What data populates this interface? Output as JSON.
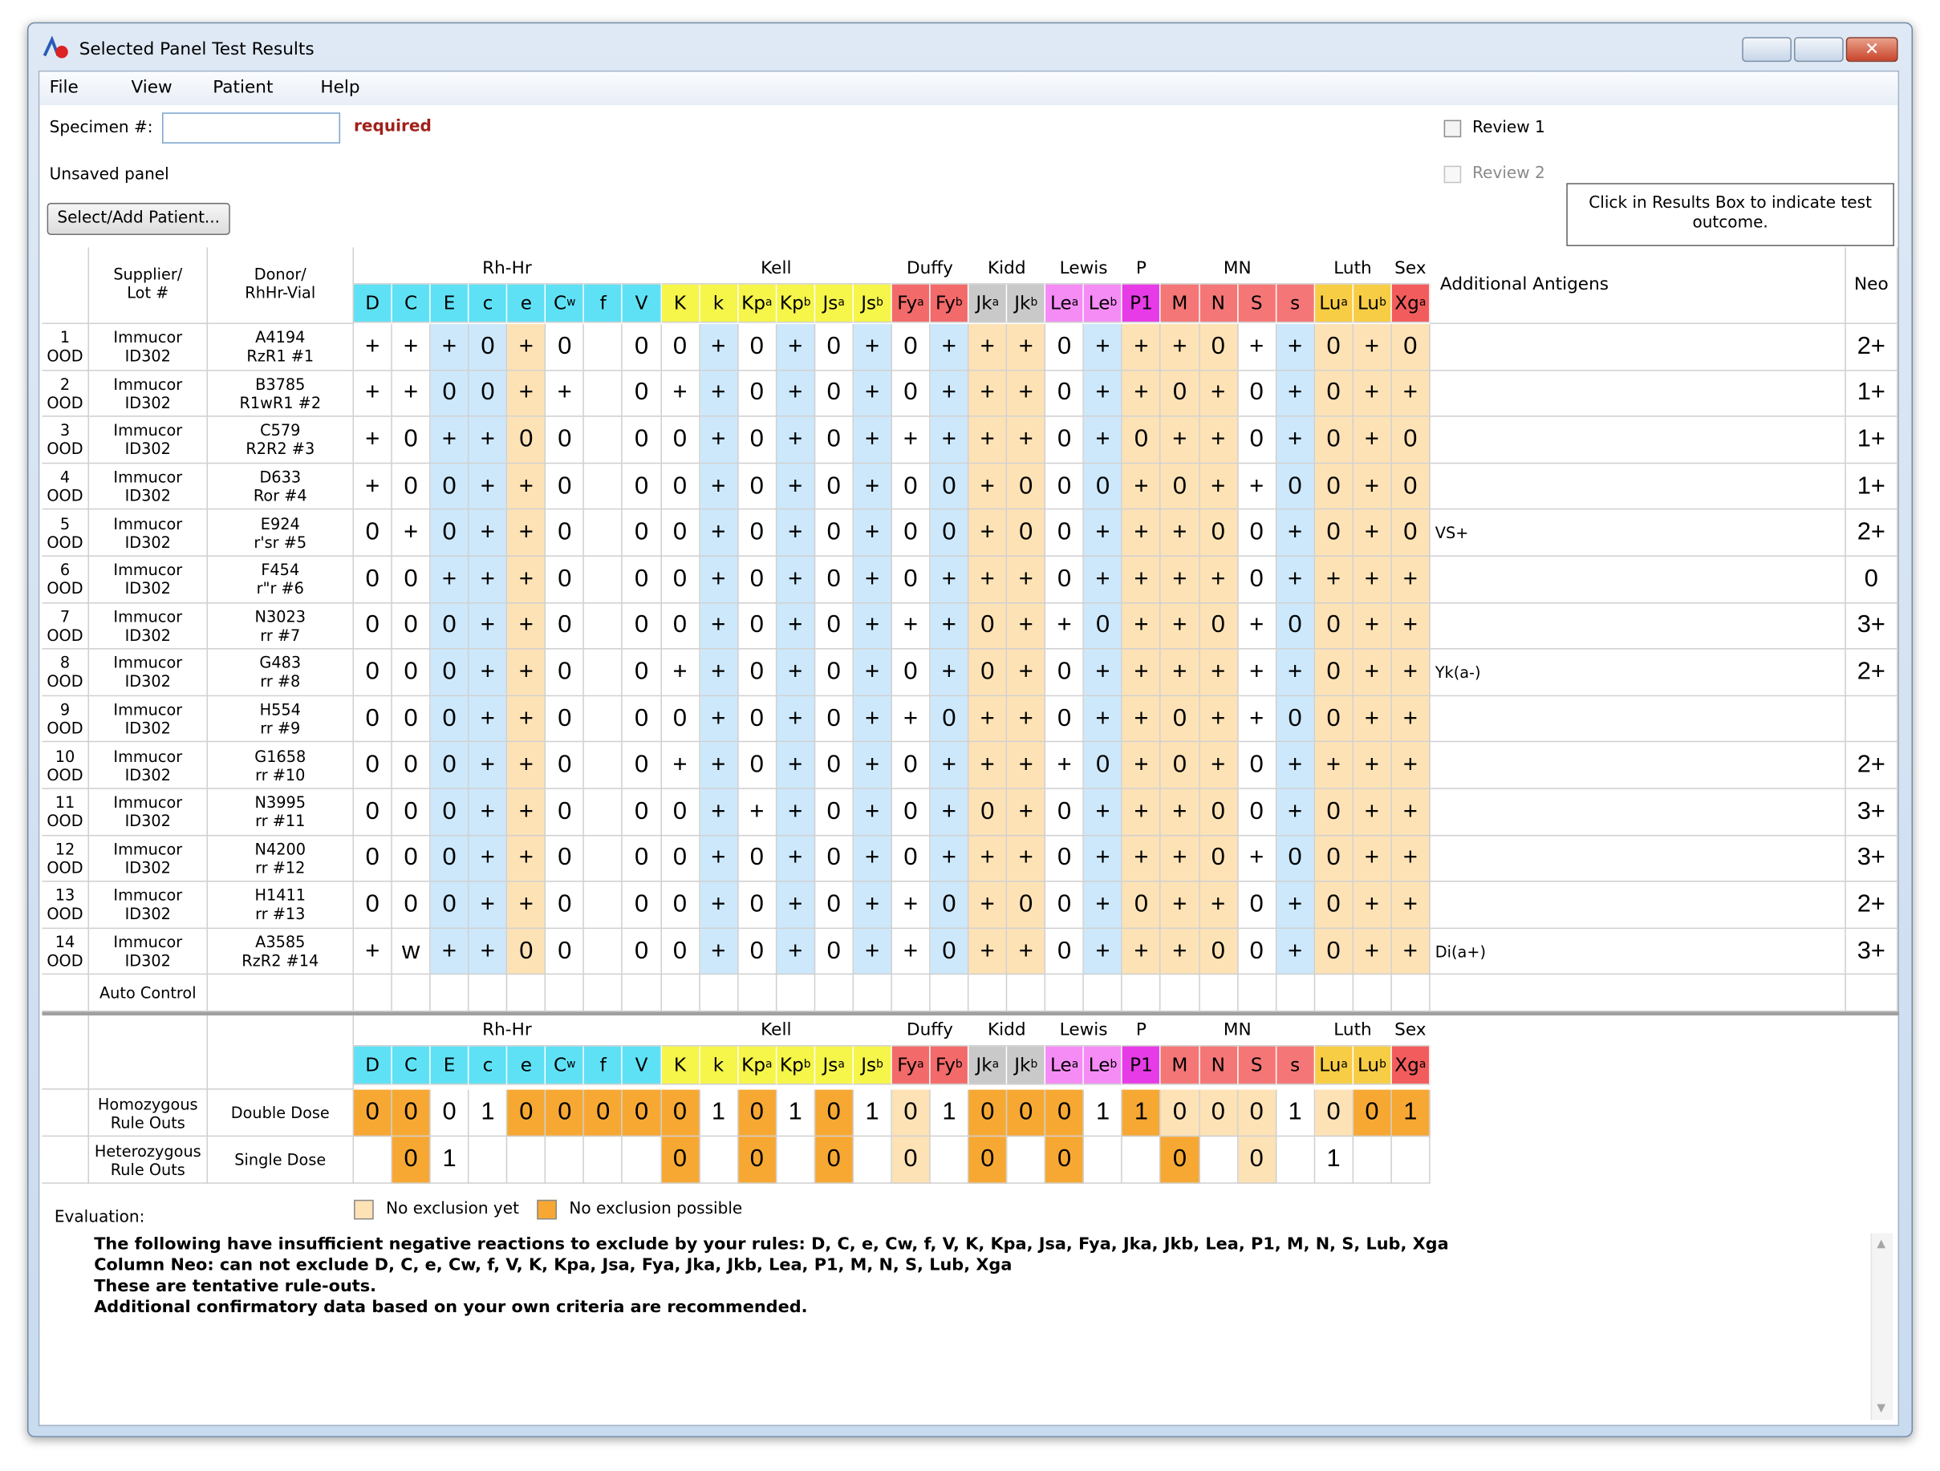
{
  "window": {
    "title": "Selected Panel Test Results",
    "menu": [
      "File",
      "View",
      "Patient",
      "Help"
    ]
  },
  "form": {
    "specimen_label": "Specimen #:",
    "required": "required",
    "status": "Unsaved panel",
    "button": "Select/Add Patient...",
    "review1": "Review 1",
    "review2": "Review 2",
    "hint": "Click in Results Box to indicate test outcome."
  },
  "table": {
    "headers": {
      "supplier": [
        "Supplier/",
        "Lot #"
      ],
      "donor": [
        "Donor/",
        "RhHr-Vial"
      ],
      "additional": "Additional Antigens",
      "neo": "Neo"
    },
    "groups": [
      {
        "name": "Rh-Hr",
        "color": "#5fe1f5",
        "antigens": [
          {
            "base": "D"
          },
          {
            "base": "C"
          },
          {
            "base": "E",
            "shade": "#cde8fb"
          },
          {
            "base": "c",
            "shade": "#cde8fb"
          },
          {
            "base": "e",
            "shade": "#fde2b5"
          },
          {
            "base": "C",
            "sup": "w"
          },
          {
            "base": "f"
          },
          {
            "base": "V"
          }
        ]
      },
      {
        "name": "Kell",
        "color": "#f5f54a",
        "antigens": [
          {
            "base": "K"
          },
          {
            "base": "k",
            "shade": "#cde8fb"
          },
          {
            "base": "Kp",
            "sup": "a"
          },
          {
            "base": "Kp",
            "sup": "b",
            "shade": "#cde8fb"
          },
          {
            "base": "Js",
            "sup": "a"
          },
          {
            "base": "Js",
            "sup": "b",
            "shade": "#cde8fb"
          }
        ]
      },
      {
        "name": "Duffy",
        "color": "#f36a6a",
        "antigens": [
          {
            "base": "Fy",
            "sup": "a"
          },
          {
            "base": "Fy",
            "sup": "b",
            "shade": "#cde8fb"
          }
        ]
      },
      {
        "name": "Kidd",
        "color": "#c9c9c9",
        "antigens": [
          {
            "base": "Jk",
            "sup": "a",
            "shade": "#fde2b5"
          },
          {
            "base": "Jk",
            "sup": "b",
            "shade": "#fde2b5"
          }
        ]
      },
      {
        "name": "Lewis",
        "color": "#f58cf5",
        "antigens": [
          {
            "base": "Le",
            "sup": "a"
          },
          {
            "base": "Le",
            "sup": "b",
            "shade": "#cde8fb"
          }
        ]
      },
      {
        "name": "P",
        "color": "#e63be6",
        "antigens": [
          {
            "base": "P1",
            "shade": "#fde2b5"
          }
        ]
      },
      {
        "name": "MN",
        "color": "#f57676",
        "antigens": [
          {
            "base": "M",
            "shade": "#fde2b5"
          },
          {
            "base": "N",
            "shade": "#fde2b5"
          },
          {
            "base": "S"
          },
          {
            "base": "s",
            "shade": "#cde8fb"
          }
        ]
      },
      {
        "name": "Luth",
        "color": "#f7cd45",
        "antigens": [
          {
            "base": "Lu",
            "sup": "a",
            "shade": "#fde2b5"
          },
          {
            "base": "Lu",
            "sup": "b",
            "shade": "#fde2b5"
          }
        ]
      },
      {
        "name": "Sex",
        "color": "#f25c5c",
        "antigens": [
          {
            "base": "Xg",
            "sup": "a",
            "shade": "#fde2b5"
          }
        ]
      }
    ],
    "rows": [
      {
        "num": "1",
        "code": "OOD",
        "supplier": "Immucor",
        "lot": "ID302",
        "donor": "A4194",
        "vial": "RzR1 #1",
        "results": [
          "+",
          "+",
          "+",
          "0",
          "+",
          "0",
          null,
          "0",
          "0",
          "+",
          "0",
          "+",
          "0",
          "+",
          "0",
          "+",
          "+",
          "+",
          "0",
          "+",
          "+",
          "+",
          "0",
          "+",
          "+",
          "0",
          "+",
          "0"
        ],
        "additional": null,
        "neo": "2+"
      },
      {
        "num": "2",
        "code": "OOD",
        "supplier": "Immucor",
        "lot": "ID302",
        "donor": "B3785",
        "vial": "R1wR1 #2",
        "results": [
          "+",
          "+",
          "0",
          "0",
          "+",
          "+",
          null,
          "0",
          "+",
          "+",
          "0",
          "+",
          "0",
          "+",
          "0",
          "+",
          "+",
          "+",
          "0",
          "+",
          "+",
          "0",
          "+",
          "0",
          "+",
          "0",
          "+",
          "+"
        ],
        "additional": null,
        "neo": "1+"
      },
      {
        "num": "3",
        "code": "OOD",
        "supplier": "Immucor",
        "lot": "ID302",
        "donor": "C579",
        "vial": "R2R2 #3",
        "results": [
          "+",
          "0",
          "+",
          "+",
          "0",
          "0",
          null,
          "0",
          "0",
          "+",
          "0",
          "+",
          "0",
          "+",
          "+",
          "+",
          "+",
          "+",
          "0",
          "+",
          "0",
          "+",
          "+",
          "0",
          "+",
          "0",
          "+",
          "0"
        ],
        "additional": null,
        "neo": "1+"
      },
      {
        "num": "4",
        "code": "OOD",
        "supplier": "Immucor",
        "lot": "ID302",
        "donor": "D633",
        "vial": "Ror #4",
        "results": [
          "+",
          "0",
          "0",
          "+",
          "+",
          "0",
          null,
          "0",
          "0",
          "+",
          "0",
          "+",
          "0",
          "+",
          "0",
          "0",
          "+",
          "0",
          "0",
          "0",
          "+",
          "0",
          "+",
          "+",
          "0",
          "0",
          "+",
          "0"
        ],
        "additional": null,
        "neo": "1+"
      },
      {
        "num": "5",
        "code": "OOD",
        "supplier": "Immucor",
        "lot": "ID302",
        "donor": "E924",
        "vial": "r'sr #5",
        "results": [
          "0",
          "+",
          "0",
          "+",
          "+",
          "0",
          null,
          "0",
          "0",
          "+",
          "0",
          "+",
          "0",
          "+",
          "0",
          "0",
          "+",
          "0",
          "0",
          "+",
          "+",
          "+",
          "0",
          "0",
          "+",
          "0",
          "+",
          "0"
        ],
        "additional": "VS+",
        "neo": "2+"
      },
      {
        "num": "6",
        "code": "OOD",
        "supplier": "Immucor",
        "lot": "ID302",
        "donor": "F454",
        "vial": "r\"r #6",
        "results": [
          "0",
          "0",
          "+",
          "+",
          "+",
          "0",
          null,
          "0",
          "0",
          "+",
          "0",
          "+",
          "0",
          "+",
          "0",
          "+",
          "+",
          "+",
          "0",
          "+",
          "+",
          "+",
          "+",
          "0",
          "+",
          "+",
          "+",
          "+"
        ],
        "additional": null,
        "neo": "0"
      },
      {
        "num": "7",
        "code": "OOD",
        "supplier": "Immucor",
        "lot": "ID302",
        "donor": "N3023",
        "vial": "rr #7",
        "results": [
          "0",
          "0",
          "0",
          "+",
          "+",
          "0",
          null,
          "0",
          "0",
          "+",
          "0",
          "+",
          "0",
          "+",
          "+",
          "+",
          "0",
          "+",
          "+",
          "0",
          "+",
          "+",
          "0",
          "+",
          "0",
          "0",
          "+",
          "+"
        ],
        "additional": null,
        "neo": "3+"
      },
      {
        "num": "8",
        "code": "OOD",
        "supplier": "Immucor",
        "lot": "ID302",
        "donor": "G483",
        "vial": "rr #8",
        "results": [
          "0",
          "0",
          "0",
          "+",
          "+",
          "0",
          null,
          "0",
          "+",
          "+",
          "0",
          "+",
          "0",
          "+",
          "0",
          "+",
          "0",
          "+",
          "0",
          "+",
          "+",
          "+",
          "+",
          "+",
          "+",
          "0",
          "+",
          "+"
        ],
        "additional": "Yk(a-)",
        "neo": "2+"
      },
      {
        "num": "9",
        "code": "OOD",
        "supplier": "Immucor",
        "lot": "ID302",
        "donor": "H554",
        "vial": "rr #9",
        "results": [
          "0",
          "0",
          "0",
          "+",
          "+",
          "0",
          null,
          "0",
          "0",
          "+",
          "0",
          "+",
          "0",
          "+",
          "+",
          "0",
          "+",
          "+",
          "0",
          "+",
          "+",
          "0",
          "+",
          "+",
          "0",
          "0",
          "+",
          "+"
        ],
        "additional": null,
        "neo": null
      },
      {
        "num": "10",
        "code": "OOD",
        "supplier": "Immucor",
        "lot": "ID302",
        "donor": "G1658",
        "vial": "rr #10",
        "results": [
          "0",
          "0",
          "0",
          "+",
          "+",
          "0",
          null,
          "0",
          "+",
          "+",
          "0",
          "+",
          "0",
          "+",
          "0",
          "+",
          "+",
          "+",
          "+",
          "0",
          "+",
          "0",
          "+",
          "0",
          "+",
          "+",
          "+",
          "+"
        ],
        "additional": null,
        "neo": "2+"
      },
      {
        "num": "11",
        "code": "OOD",
        "supplier": "Immucor",
        "lot": "ID302",
        "donor": "N3995",
        "vial": "rr #11",
        "results": [
          "0",
          "0",
          "0",
          "+",
          "+",
          "0",
          null,
          "0",
          "0",
          "+",
          "+",
          "+",
          "0",
          "+",
          "0",
          "+",
          "0",
          "+",
          "0",
          "+",
          "+",
          "+",
          "0",
          "0",
          "+",
          "0",
          "+",
          "+"
        ],
        "additional": null,
        "neo": "3+"
      },
      {
        "num": "12",
        "code": "OOD",
        "supplier": "Immucor",
        "lot": "ID302",
        "donor": "N4200",
        "vial": "rr #12",
        "results": [
          "0",
          "0",
          "0",
          "+",
          "+",
          "0",
          null,
          "0",
          "0",
          "+",
          "0",
          "+",
          "0",
          "+",
          "0",
          "+",
          "+",
          "+",
          "0",
          "+",
          "+",
          "+",
          "0",
          "+",
          "0",
          "0",
          "+",
          "+"
        ],
        "additional": null,
        "neo": "3+"
      },
      {
        "num": "13",
        "code": "OOD",
        "supplier": "Immucor",
        "lot": "ID302",
        "donor": "H1411",
        "vial": "rr #13",
        "results": [
          "0",
          "0",
          "0",
          "+",
          "+",
          "0",
          null,
          "0",
          "0",
          "+",
          "0",
          "+",
          "0",
          "+",
          "+",
          "0",
          "+",
          "0",
          "0",
          "+",
          "0",
          "+",
          "+",
          "0",
          "+",
          "0",
          "+",
          "+"
        ],
        "additional": null,
        "neo": "2+"
      },
      {
        "num": "14",
        "code": "OOD",
        "supplier": "Immucor",
        "lot": "ID302",
        "donor": "A3585",
        "vial": "RzR2 #14",
        "results": [
          "+",
          "w",
          "+",
          "+",
          "0",
          "0",
          null,
          "0",
          "0",
          "+",
          "0",
          "+",
          "0",
          "+",
          "+",
          "0",
          "+",
          "+",
          "0",
          "+",
          "+",
          "+",
          "0",
          "0",
          "+",
          "0",
          "+",
          "+"
        ],
        "additional": "Di(a+)",
        "neo": "3+"
      }
    ],
    "auto_control": "Auto Control"
  },
  "ruleouts": {
    "rows": [
      {
        "label": [
          "Homozygous",
          "Rule Outs"
        ],
        "dose": "Double Dose",
        "values": [
          0,
          0,
          0,
          1,
          0,
          0,
          0,
          0,
          0,
          1,
          0,
          1,
          0,
          1,
          0,
          1,
          0,
          0,
          0,
          1,
          1,
          0,
          0,
          0,
          1,
          0,
          0,
          1
        ],
        "shades": [
          "#f7a833",
          "#f7a833",
          null,
          null,
          "#f7a833",
          "#f7a833",
          "#f7a833",
          "#f7a833",
          "#f7a833",
          null,
          "#f7a833",
          null,
          "#f7a833",
          null,
          "#fde2b5",
          null,
          "#f7a833",
          "#f7a833",
          "#f7a833",
          null,
          "#f7a833",
          "#fde2b5",
          "#fde2b5",
          "#fde2b5",
          null,
          "#fde2b5",
          "#f7a833",
          "#f7a833"
        ]
      },
      {
        "label": [
          "Heterozygous",
          "Rule Outs"
        ],
        "dose": "Single Dose",
        "values": [
          null,
          0,
          1,
          null,
          null,
          null,
          null,
          null,
          0,
          null,
          0,
          null,
          0,
          null,
          0,
          null,
          0,
          null,
          0,
          null,
          null,
          0,
          null,
          0,
          null,
          1,
          null,
          null
        ],
        "shades": [
          null,
          "#f7a833",
          null,
          null,
          null,
          null,
          null,
          null,
          "#f7a833",
          null,
          "#f7a833",
          null,
          "#f7a833",
          null,
          "#fde2b5",
          null,
          "#f7a833",
          null,
          "#f7a833",
          null,
          null,
          "#f7a833",
          null,
          "#fde2b5",
          null,
          null,
          null,
          null
        ]
      }
    ]
  },
  "legend": [
    {
      "label": "No exclusion yet",
      "color": "#fde2b5"
    },
    {
      "label": "No exclusion possible",
      "color": "#f7a833"
    }
  ],
  "evaluation": {
    "label": "Evaluation:",
    "lines": [
      "The following have insufficient negative reactions to exclude by your rules: D, C, e, Cw, f, V, K, Kpa, Jsa, Fya, Jka, Jkb, Lea, P1, M, N, S, Lub, Xga",
      "Column Neo: can not exclude D, C, e, Cw, f, V, K, Kpa, Jsa, Fya, Jka, Jkb, Lea, P1, M, N, S, Lub, Xga",
      "These are tentative rule-outs.",
      "Additional confirmatory data based on your own criteria are recommended."
    ]
  }
}
